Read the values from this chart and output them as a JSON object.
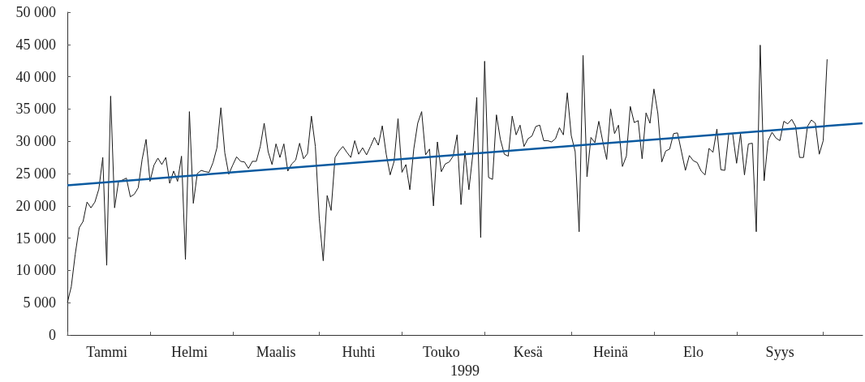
{
  "chart_data": {
    "type": "line",
    "xlabel": "1999",
    "marker": "none",
    "categories": [
      null,
      null,
      null,
      null,
      null,
      null,
      null,
      null,
      null,
      null,
      "Tammi",
      null,
      null,
      null,
      null,
      null,
      null,
      null,
      null,
      null,
      null,
      null,
      null,
      null,
      null,
      null,
      null,
      null,
      null,
      null,
      null,
      "Helmi",
      null,
      null,
      null,
      null,
      null,
      null,
      null,
      null,
      null,
      null,
      null,
      null,
      null,
      null,
      null,
      null,
      null,
      null,
      null,
      null,
      null,
      "Maalis",
      null,
      null,
      null,
      null,
      null,
      null,
      null,
      null,
      null,
      null,
      null,
      null,
      null,
      null,
      null,
      null,
      null,
      null,
      null,
      null,
      "Huhti",
      null,
      null,
      null,
      null,
      null,
      null,
      null,
      null,
      null,
      null,
      null,
      null,
      null,
      null,
      null,
      null,
      null,
      null,
      null,
      null,
      "Touko",
      null,
      null,
      null,
      null,
      null,
      null,
      null,
      null,
      null,
      null,
      null,
      null,
      null,
      null,
      null,
      null,
      null,
      null,
      null,
      null,
      null,
      "Kesä",
      null,
      null,
      null,
      null,
      null,
      null,
      null,
      null,
      null,
      null,
      null,
      null,
      null,
      null,
      null,
      null,
      null,
      null,
      null,
      null,
      "Heinä",
      null,
      null,
      null,
      null,
      null,
      null,
      null,
      null,
      null,
      null,
      null,
      null,
      null,
      null,
      null,
      null,
      null,
      null,
      null,
      null,
      "Elo",
      null,
      null,
      null,
      null,
      null,
      null,
      null,
      null,
      null,
      null,
      null,
      null,
      null,
      null,
      null,
      null,
      null,
      null,
      null,
      null,
      null,
      "Syys",
      null,
      null,
      null,
      null,
      null,
      null,
      null,
      null,
      null,
      null,
      null,
      null,
      null,
      null,
      null,
      null,
      null,
      null,
      null,
      null,
      null
    ],
    "ylim": [
      0,
      50000
    ],
    "yticks": [
      0,
      {
        "value": 5000,
        "label": "5 000"
      },
      {
        "value": 10000,
        "label": "10 000"
      },
      {
        "value": 15000,
        "label": "15 000"
      },
      {
        "value": 20000,
        "label": "20 000"
      },
      {
        "value": 25000,
        "label": "25 000"
      },
      {
        "value": 30000,
        "label": "30 000"
      },
      {
        "value": 35000,
        "label": "35 000"
      },
      {
        "value": 40000,
        "label": "40 000"
      },
      {
        "value": 45000,
        "label": "45 000"
      },
      {
        "value": 50000,
        "label": "50 000"
      }
    ],
    "series": [
      {
        "color": "#1a1a1a",
        "values": [
          5000,
          7500,
          12500,
          16600,
          17600,
          20600,
          19700,
          20600,
          22600,
          27500,
          10800,
          37000,
          19700,
          23800,
          24000,
          24300,
          21400,
          21800,
          22800,
          27200,
          30300,
          23800,
          26300,
          27400,
          26400,
          27500,
          23500,
          25400,
          23800,
          27700,
          11700,
          34600,
          20400,
          25000,
          25500,
          25300,
          25200,
          26700,
          29000,
          35200,
          28200,
          24900,
          26300,
          27600,
          26900,
          26800,
          25800,
          26900,
          26900,
          29200,
          32800,
          28400,
          26400,
          29600,
          27500,
          29600,
          25400,
          26500,
          27100,
          29700,
          27300,
          28100,
          33900,
          29200,
          18000,
          11500,
          21600,
          19300,
          27500,
          28500,
          29200,
          28300,
          27500,
          30100,
          28000,
          29000,
          27900,
          29200,
          30600,
          29400,
          32400,
          28000,
          24800,
          26900,
          33500,
          25200,
          26400,
          22500,
          28800,
          32800,
          34600,
          27900,
          28800,
          20000,
          29900,
          25300,
          26500,
          26800,
          27700,
          31000,
          20200,
          28500,
          22500,
          28000,
          36800,
          15100,
          42400,
          24400,
          24100,
          34100,
          30300,
          28000,
          27700,
          33900,
          31000,
          32500,
          29200,
          30400,
          30800,
          32300,
          32500,
          30100,
          30100,
          29900,
          30400,
          32100,
          31000,
          37500,
          30900,
          28400,
          16000,
          43300,
          24500,
          30600,
          29800,
          33100,
          30000,
          27200,
          35000,
          31200,
          32500,
          26100,
          27700,
          35400,
          32900,
          33200,
          27300,
          34400,
          32800,
          38100,
          34300,
          26800,
          28500,
          28800,
          31200,
          31300,
          28400,
          25500,
          27800,
          27000,
          26700,
          25400,
          24800,
          28900,
          28300,
          31900,
          25600,
          25500,
          31100,
          31200,
          26600,
          31200,
          24800,
          29600,
          29700,
          16000,
          44900,
          23900,
          30100,
          31400,
          30500,
          30100,
          33100,
          32700,
          33400,
          32300,
          27500,
          27500,
          32300,
          33300,
          32800,
          28000,
          30100,
          42700,
          null,
          null,
          null,
          null,
          null,
          null,
          null,
          null,
          null
        ]
      },
      {
        "type": "line",
        "color": "#0a5aa0",
        "values": [
          23200,
          null,
          null,
          null,
          null,
          null,
          null,
          null,
          null,
          null,
          null,
          null,
          null,
          null,
          null,
          null,
          null,
          null,
          null,
          null,
          null,
          null,
          null,
          null,
          null,
          null,
          null,
          null,
          null,
          null,
          null,
          null,
          null,
          null,
          null,
          null,
          null,
          null,
          null,
          null,
          null,
          null,
          null,
          null,
          null,
          null,
          null,
          null,
          null,
          null,
          null,
          null,
          null,
          null,
          null,
          null,
          null,
          null,
          null,
          null,
          null,
          null,
          null,
          null,
          null,
          null,
          null,
          null,
          null,
          null,
          null,
          null,
          null,
          null,
          null,
          null,
          null,
          null,
          null,
          null,
          null,
          null,
          null,
          null,
          null,
          null,
          null,
          null,
          null,
          null,
          null,
          null,
          null,
          null,
          null,
          null,
          null,
          null,
          null,
          null,
          null,
          null,
          null,
          null,
          null,
          null,
          null,
          null,
          null,
          null,
          null,
          null,
          null,
          null,
          null,
          null,
          null,
          null,
          null,
          null,
          null,
          null,
          null,
          null,
          null,
          null,
          null,
          null,
          null,
          null,
          null,
          null,
          null,
          null,
          null,
          null,
          null,
          null,
          null,
          null,
          null,
          null,
          null,
          null,
          null,
          null,
          null,
          null,
          null,
          null,
          null,
          null,
          null,
          null,
          null,
          null,
          null,
          null,
          null,
          null,
          null,
          null,
          null,
          null,
          null,
          null,
          null,
          null,
          null,
          null,
          null,
          null,
          null,
          null,
          null,
          null,
          null,
          null,
          null,
          null,
          null,
          null,
          null,
          null,
          null,
          null,
          null,
          null,
          null,
          null,
          null,
          null,
          null,
          null,
          null,
          null,
          null,
          null,
          null,
          null,
          null,
          null,
          32800
        ]
      }
    ]
  }
}
